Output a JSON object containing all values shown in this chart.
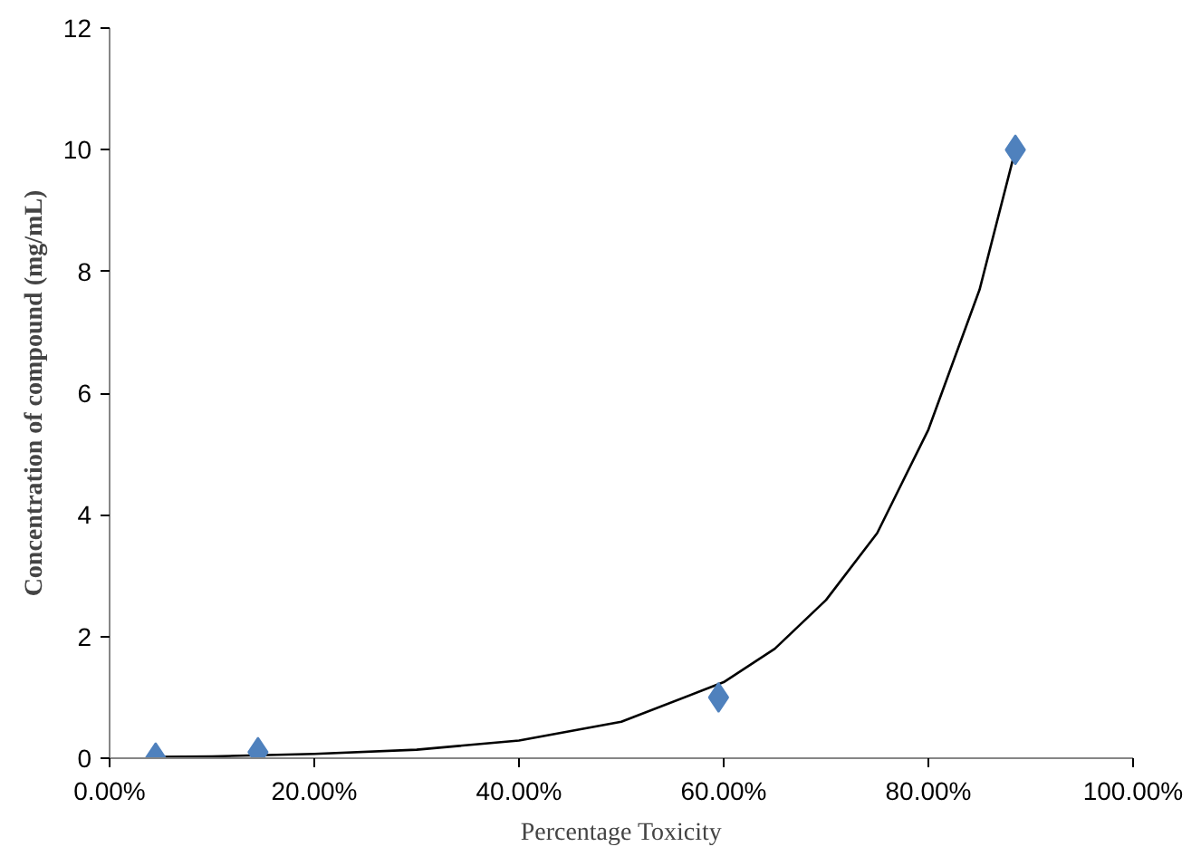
{
  "chart_data": {
    "type": "scatter",
    "xlabel": "Percentage Toxicity",
    "ylabel": "Concentration of compound (mg/mL)",
    "grid": false,
    "xlim": [
      0,
      100
    ],
    "ylim": [
      0,
      12
    ],
    "xticks": [
      {
        "value": 0,
        "label": "0.00%"
      },
      {
        "value": 20,
        "label": "20.00%"
      },
      {
        "value": 40,
        "label": "40.00%"
      },
      {
        "value": 60,
        "label": "60.00%"
      },
      {
        "value": 80,
        "label": "80.00%"
      },
      {
        "value": 100,
        "label": "100.00%"
      }
    ],
    "yticks": [
      0,
      2,
      4,
      6,
      8,
      10,
      12
    ],
    "series": [
      {
        "color": "#4f81bd",
        "marker": "diamond",
        "x": [
          4.5,
          14.5,
          59.5,
          88.5
        ],
        "values": [
          0.01,
          0.1,
          1.0,
          10
        ]
      },
      {
        "type": "line",
        "marker": "none",
        "color": "#000000",
        "x": [
          4.5,
          10,
          20,
          30,
          40,
          50,
          60,
          65,
          70,
          75,
          80,
          85,
          88.5
        ],
        "values": [
          0.02,
          0.03,
          0.07,
          0.14,
          0.29,
          0.6,
          1.25,
          1.8,
          2.6,
          3.7,
          5.4,
          7.7,
          10
        ]
      }
    ]
  }
}
